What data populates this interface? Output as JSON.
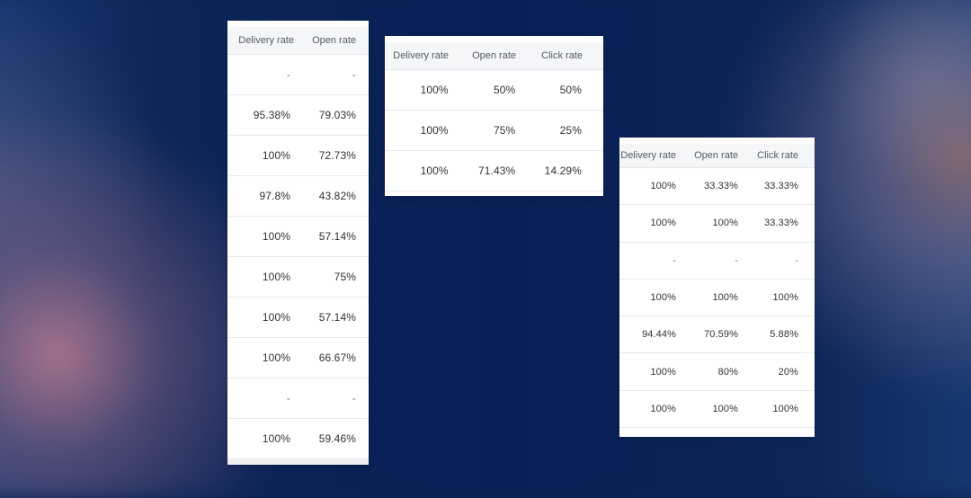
{
  "tables": [
    {
      "columns": [
        "Delivery rate",
        "Open rate"
      ],
      "rows": [
        [
          "-",
          "-"
        ],
        [
          "95.38%",
          "79.03%"
        ],
        [
          "100%",
          "72.73%"
        ],
        [
          "97.8%",
          "43.82%"
        ],
        [
          "100%",
          "57.14%"
        ],
        [
          "100%",
          "75%"
        ],
        [
          "100%",
          "57.14%"
        ],
        [
          "100%",
          "66.67%"
        ],
        [
          "-",
          "-"
        ],
        [
          "100%",
          "59.46%"
        ]
      ]
    },
    {
      "columns": [
        "Delivery rate",
        "Open rate",
        "Click rate"
      ],
      "rows": [
        [
          "100%",
          "50%",
          "50%"
        ],
        [
          "100%",
          "75%",
          "25%"
        ],
        [
          "100%",
          "71.43%",
          "14.29%"
        ]
      ]
    },
    {
      "columns": [
        "Delivery rate",
        "Open rate",
        "Click rate"
      ],
      "rows": [
        [
          "100%",
          "33.33%",
          "33.33%"
        ],
        [
          "100%",
          "100%",
          "33.33%"
        ],
        [
          "-",
          "-",
          "-"
        ],
        [
          "100%",
          "100%",
          "100%"
        ],
        [
          "94.44%",
          "70.59%",
          "5.88%"
        ],
        [
          "100%",
          "80%",
          "20%"
        ],
        [
          "100%",
          "100%",
          "100%"
        ]
      ]
    }
  ]
}
